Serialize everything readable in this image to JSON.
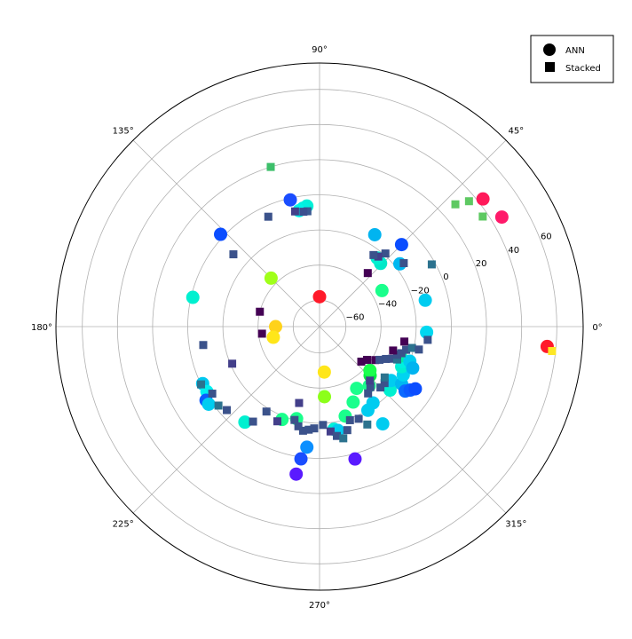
{
  "chart_data": {
    "type": "scatter",
    "projection": "polar",
    "grid": true,
    "legend_position": "top-right",
    "angle_ticks": [
      {
        "deg": 0,
        "label": "0°"
      },
      {
        "deg": 45,
        "label": "45°"
      },
      {
        "deg": 90,
        "label": "90°"
      },
      {
        "deg": 135,
        "label": "135°"
      },
      {
        "deg": 180,
        "label": "180°"
      },
      {
        "deg": 225,
        "label": "225°"
      },
      {
        "deg": 270,
        "label": "270°"
      },
      {
        "deg": 315,
        "label": "315°"
      }
    ],
    "r_range": [
      -75,
      75
    ],
    "r_ticks": [
      {
        "value": -60,
        "label": "−60"
      },
      {
        "value": -40,
        "label": "−40"
      },
      {
        "value": -20,
        "label": "−20"
      },
      {
        "value": 0,
        "label": "0"
      },
      {
        "value": 20,
        "label": "20"
      },
      {
        "value": 40,
        "label": "40"
      },
      {
        "value": 60,
        "label": "60"
      }
    ],
    "r_tick_label_angle": 22.5,
    "series": [
      {
        "name": "ANN",
        "marker": "circle",
        "points": [
          {
            "theta": 90,
            "r": -58,
            "color": "#ff1a2a"
          },
          {
            "theta": 180,
            "r": -50,
            "color": "#ffd21a"
          },
          {
            "theta": 193,
            "r": -48,
            "color": "#ffe61a"
          },
          {
            "theta": 276,
            "r": -49,
            "color": "#ffe61a"
          },
          {
            "theta": 274,
            "r": -35,
            "color": "#8cff1a"
          },
          {
            "theta": 135,
            "r": -36,
            "color": "#a0ff1a"
          },
          {
            "theta": 30,
            "r": -34,
            "color": "#1aff8c"
          },
          {
            "theta": 46,
            "r": -25,
            "color": "#00e8c8"
          },
          {
            "theta": 50,
            "r": -24,
            "color": "#00f0d0"
          },
          {
            "theta": 59,
            "r": -14,
            "color": "#00b4f0"
          },
          {
            "theta": 38,
            "r": -17,
            "color": "#00b8f0"
          },
          {
            "theta": 45,
            "r": -9,
            "color": "#0b4dff"
          },
          {
            "theta": 14,
            "r": -13,
            "color": "#00ccf0"
          },
          {
            "theta": 357,
            "r": -14,
            "color": "#00d8f0"
          },
          {
            "theta": 96,
            "r": -6,
            "color": "#00f0d8"
          },
          {
            "theta": 98,
            "r": -7,
            "color": "#00f0e0"
          },
          {
            "theta": 100,
            "r": -8,
            "color": "#00f4e8"
          },
          {
            "theta": 103,
            "r": -1,
            "color": "#1a4dff"
          },
          {
            "theta": 137,
            "r": 2,
            "color": "#0b4dff"
          },
          {
            "theta": 167,
            "r": -1,
            "color": "#00f0d0"
          },
          {
            "theta": 206,
            "r": -1,
            "color": "#00c8f0"
          },
          {
            "theta": 210,
            "r": -1,
            "color": "#00f0f0"
          },
          {
            "theta": 213,
            "r": 2,
            "color": "#0b5aff"
          },
          {
            "theta": 215,
            "r": 2,
            "color": "#00ccf0"
          },
          {
            "theta": 232,
            "r": -6,
            "color": "#00f0d0"
          },
          {
            "theta": 248,
            "r": -18,
            "color": "#1aff8c"
          },
          {
            "theta": 256,
            "r": -21,
            "color": "#1aff8c"
          },
          {
            "theta": 264,
            "r": -6,
            "color": "#0b8fff"
          },
          {
            "theta": 262,
            "r": 1,
            "color": "#1a4dff"
          },
          {
            "theta": 261,
            "r": 10,
            "color": "#5a1aff"
          },
          {
            "theta": 278,
            "r": -16,
            "color": "#00f0d8"
          },
          {
            "theta": 280,
            "r": -15,
            "color": "#00ccf0"
          },
          {
            "theta": 286,
            "r": -22,
            "color": "#1aff8c"
          },
          {
            "theta": 294,
            "r": -28,
            "color": "#1aff8c"
          },
          {
            "theta": 301,
            "r": -34,
            "color": "#1aff8c"
          },
          {
            "theta": 300,
            "r": -20,
            "color": "#00ccf0"
          },
          {
            "theta": 305,
            "r": -22,
            "color": "#00ccf0"
          },
          {
            "theta": 285,
            "r": 3,
            "color": "#5a1aff"
          },
          {
            "theta": 303,
            "r": -9,
            "color": "#00ccf0"
          },
          {
            "theta": 310,
            "r": -31,
            "color": "#1aff8c"
          },
          {
            "theta": 316,
            "r": -35,
            "color": "#00f040"
          },
          {
            "theta": 319,
            "r": -37,
            "color": "#1aff4d"
          },
          {
            "theta": 318,
            "r": -21,
            "color": "#00f0d0"
          },
          {
            "theta": 323,
            "r": -24,
            "color": "#00ccf0"
          },
          {
            "theta": 325,
            "r": -18,
            "color": "#00b8f0"
          },
          {
            "theta": 323,
            "r": -14,
            "color": "#0b6aff"
          },
          {
            "theta": 325,
            "r": -12,
            "color": "#0b5aff"
          },
          {
            "theta": 327,
            "r": -10,
            "color": "#0b4dff"
          },
          {
            "theta": 330,
            "r": -20,
            "color": "#00d4f0"
          },
          {
            "theta": 334,
            "r": -23,
            "color": "#00f0d0"
          },
          {
            "theta": 337,
            "r": -24,
            "color": "#00f0e0"
          },
          {
            "theta": 340,
            "r": -26,
            "color": "#00f0a0"
          },
          {
            "theta": 339,
            "r": -20,
            "color": "#00ccf0"
          },
          {
            "theta": 336,
            "r": -17,
            "color": "#00b4f0"
          },
          {
            "theta": 38,
            "r": 43,
            "color": "#ff1a5a"
          },
          {
            "theta": 31,
            "r": 46,
            "color": "#ff1a6a"
          },
          {
            "theta": 355,
            "r": 55,
            "color": "#ff1a2a"
          }
        ]
      },
      {
        "name": "Stacked",
        "marker": "square",
        "points": [
          {
            "theta": 107,
            "r": 20,
            "color": "#3dbf6a"
          },
          {
            "theta": 96,
            "r": -9,
            "color": "#3b5a93"
          },
          {
            "theta": 98,
            "r": -9,
            "color": "#3b4f8f"
          },
          {
            "theta": 102,
            "r": -8,
            "color": "#433f8a"
          },
          {
            "theta": 115,
            "r": -6,
            "color": "#3b528b"
          },
          {
            "theta": 140,
            "r": -11,
            "color": "#3b528b"
          },
          {
            "theta": 166,
            "r": -40,
            "color": "#440154"
          },
          {
            "theta": 187,
            "r": -42,
            "color": "#440154"
          },
          {
            "theta": 189,
            "r": -8,
            "color": "#3b528b"
          },
          {
            "theta": 203,
            "r": -21,
            "color": "#433f8a"
          },
          {
            "theta": 206,
            "r": 0,
            "color": "#2c728e"
          },
          {
            "theta": 212,
            "r": -3,
            "color": "#3b528b"
          },
          {
            "theta": 218,
            "r": -2,
            "color": "#2c728e"
          },
          {
            "theta": 222,
            "r": -4,
            "color": "#3b528b"
          },
          {
            "theta": 235,
            "r": -9,
            "color": "#3b528b"
          },
          {
            "theta": 238,
            "r": -18,
            "color": "#3b528b"
          },
          {
            "theta": 255,
            "r": -30,
            "color": "#433f8a"
          },
          {
            "theta": 246,
            "r": -16,
            "color": "#433f8a"
          },
          {
            "theta": 255,
            "r": -20,
            "color": "#3b528b"
          },
          {
            "theta": 258,
            "r": -17,
            "color": "#3b528b"
          },
          {
            "theta": 261,
            "r": -15,
            "color": "#3b528b"
          },
          {
            "theta": 264,
            "r": -16,
            "color": "#3b528b"
          },
          {
            "theta": 267,
            "r": -17,
            "color": "#3b528b"
          },
          {
            "theta": 272,
            "r": -19,
            "color": "#3b528b"
          },
          {
            "theta": 276,
            "r": -15,
            "color": "#433f8a"
          },
          {
            "theta": 279,
            "r": -12,
            "color": "#3b528b"
          },
          {
            "theta": 282,
            "r": -10,
            "color": "#2c728e"
          },
          {
            "theta": 285,
            "r": -14,
            "color": "#3b528b"
          },
          {
            "theta": 288,
            "r": -19,
            "color": "#3b528b"
          },
          {
            "theta": 293,
            "r": -18,
            "color": "#3b528b"
          },
          {
            "theta": 296,
            "r": -13,
            "color": "#2c728e"
          },
          {
            "theta": 306,
            "r": -28,
            "color": "#3b528b"
          },
          {
            "theta": 310,
            "r": -30,
            "color": "#3b528b"
          },
          {
            "theta": 313,
            "r": -33,
            "color": "#433f8a"
          },
          {
            "theta": 315,
            "r": -26,
            "color": "#3b528b"
          },
          {
            "theta": 319,
            "r": -26,
            "color": "#3b528b"
          },
          {
            "theta": 322,
            "r": -28,
            "color": "#2c728e"
          },
          {
            "theta": 320,
            "r": -44,
            "color": "#440154"
          },
          {
            "theta": 325,
            "r": -42,
            "color": "#440154"
          },
          {
            "theta": 329,
            "r": -38,
            "color": "#440154"
          },
          {
            "theta": 331,
            "r": -36,
            "color": "#3b528b"
          },
          {
            "theta": 334,
            "r": -33,
            "color": "#3b528b"
          },
          {
            "theta": 336,
            "r": -30,
            "color": "#3b528b"
          },
          {
            "theta": 337,
            "r": -27,
            "color": "#2c728e"
          },
          {
            "theta": 340,
            "r": -28,
            "color": "#3b528b"
          },
          {
            "theta": 342,
            "r": -31,
            "color": "#440154"
          },
          {
            "theta": 342,
            "r": -26,
            "color": "#3b528b"
          },
          {
            "theta": 345,
            "r": -24,
            "color": "#3b528b"
          },
          {
            "theta": 347,
            "r": -21,
            "color": "#2c728e"
          },
          {
            "theta": 347,
            "r": -17,
            "color": "#3b528b"
          },
          {
            "theta": 350,
            "r": -26,
            "color": "#440154"
          },
          {
            "theta": 353,
            "r": -13,
            "color": "#3b528b"
          },
          {
            "theta": 48,
            "r": -19,
            "color": "#3b528b"
          },
          {
            "theta": 50,
            "r": -23,
            "color": "#433f8a"
          },
          {
            "theta": 53,
            "r": -24,
            "color": "#3b528b"
          },
          {
            "theta": 48,
            "r": -34,
            "color": "#440154"
          },
          {
            "theta": 37,
            "r": -15,
            "color": "#3b528b"
          },
          {
            "theta": 29,
            "r": -2,
            "color": "#2c728e"
          },
          {
            "theta": 42,
            "r": 29,
            "color": "#5ec962"
          },
          {
            "theta": 40,
            "r": 36,
            "color": "#5ec962"
          },
          {
            "theta": 34,
            "r": 37,
            "color": "#5ec962"
          },
          {
            "theta": 354,
            "r": 58,
            "color": "#fde725"
          }
        ]
      }
    ]
  }
}
